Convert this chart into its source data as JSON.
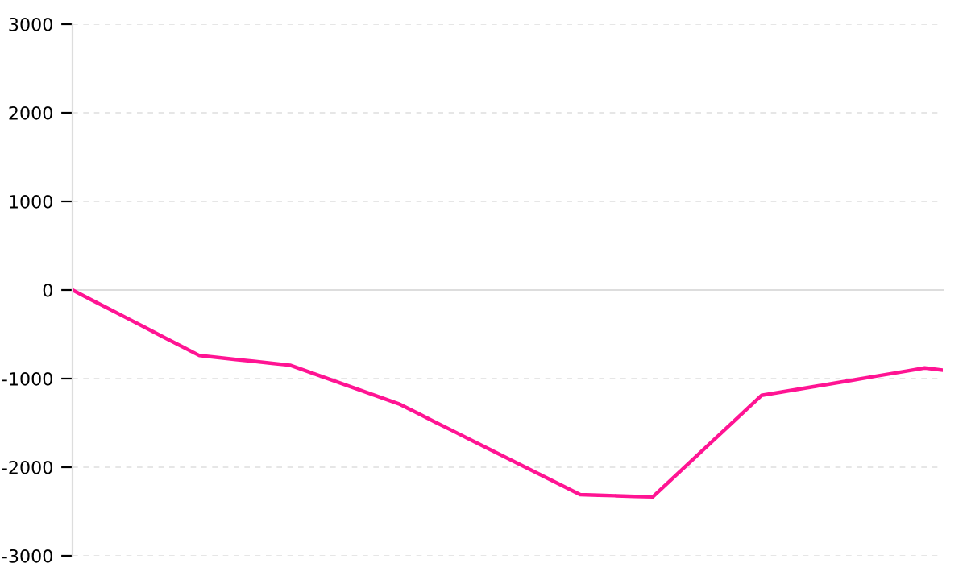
{
  "chart_data": {
    "type": "line",
    "categories": [
      null,
      null,
      null,
      null,
      null,
      null,
      null,
      null,
      null,
      null,
      null,
      null,
      null,
      null,
      null,
      null,
      null,
      null,
      null,
      null,
      null,
      null,
      null,
      null,
      null,
      null,
      null,
      null,
      null,
      null,
      null,
      null,
      null,
      null,
      null,
      null,
      null,
      null,
      null,
      null,
      null,
      null,
      null,
      null,
      null,
      null,
      null,
      null,
      null
    ],
    "series": [
      {
        "color": "#ff1493",
        "values": [
          0,
          -106,
          -211,
          -317,
          -423,
          -529,
          -634,
          -740,
          -762,
          -784,
          -805,
          -827,
          -849,
          -922,
          -994,
          -1067,
          -1140,
          -1212,
          -1285,
          -1387,
          -1490,
          -1592,
          -1695,
          -1797,
          -1899,
          -2002,
          -2104,
          -2207,
          -2309,
          -2316,
          -2322,
          -2329,
          -2335,
          -2144,
          -1953,
          -1762,
          -1571,
          -1380,
          -1189,
          -1155,
          -1120,
          -1086,
          -1052,
          -1018,
          -983,
          -949,
          -915,
          -880,
          -904
        ]
      }
    ],
    "ylim": [
      -3000,
      3000
    ],
    "yticks": [
      -3000,
      -2000,
      -1000,
      0,
      1000,
      2000,
      3000
    ],
    "grid": "y",
    "tick_labels": "y",
    "marker": "none",
    "line_style": "solid"
  }
}
